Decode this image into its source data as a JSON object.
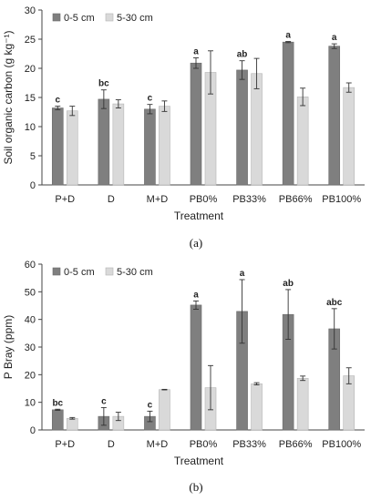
{
  "chart_data": [
    {
      "type": "bar",
      "panel_label": "(a)",
      "xlabel": "Treatment",
      "ylabel": "Soil organic carbon (g kg⁻¹)",
      "ylim": [
        0,
        30
      ],
      "yticks": [
        0,
        5,
        10,
        15,
        20,
        25,
        30
      ],
      "categories": [
        "P+D",
        "D",
        "M+D",
        "PB0%",
        "PB33%",
        "PB66%",
        "PB100%"
      ],
      "legend_position": "top-left",
      "series": [
        {
          "name": "0-5 cm",
          "color": "#7f7f7f",
          "values": [
            13.2,
            14.7,
            13.0,
            20.9,
            19.7,
            24.5,
            23.8
          ],
          "errors": [
            0.3,
            1.6,
            0.8,
            0.9,
            1.6,
            0.1,
            0.4
          ]
        },
        {
          "name": "5-30 cm",
          "color": "#d9d9d9",
          "values": [
            12.7,
            13.9,
            13.5,
            19.3,
            19.1,
            15.1,
            16.7
          ],
          "errors": [
            0.8,
            0.7,
            0.9,
            3.7,
            2.6,
            1.5,
            0.8
          ]
        }
      ],
      "significance": [
        "c",
        "bc",
        "c",
        "a",
        "ab",
        "a",
        "a"
      ]
    },
    {
      "type": "bar",
      "panel_label": "(b)",
      "xlabel": "Treatment",
      "ylabel": "P Bray (ppm)",
      "ylim": [
        0,
        60
      ],
      "yticks": [
        0,
        10,
        20,
        30,
        40,
        50,
        60
      ],
      "categories": [
        "P+D",
        "D",
        "M+D",
        "PB0%",
        "PB33%",
        "PB66%",
        "PB100%"
      ],
      "legend_position": "top-left",
      "series": [
        {
          "name": "0-5 cm",
          "color": "#7f7f7f",
          "values": [
            7.3,
            4.9,
            4.9,
            45.2,
            42.9,
            41.8,
            36.6
          ],
          "errors": [
            0.2,
            3.2,
            1.9,
            1.5,
            11.5,
            9.0,
            7.3
          ]
        },
        {
          "name": "5-30 cm",
          "color": "#d9d9d9",
          "values": [
            4.2,
            4.9,
            14.6,
            15.3,
            16.7,
            18.7,
            19.6
          ],
          "errors": [
            0.3,
            1.5,
            0.1,
            8.0,
            0.4,
            0.8,
            2.9
          ]
        }
      ],
      "significance": [
        "bc",
        "c",
        "c",
        "a",
        "a",
        "ab",
        "abc"
      ]
    }
  ]
}
